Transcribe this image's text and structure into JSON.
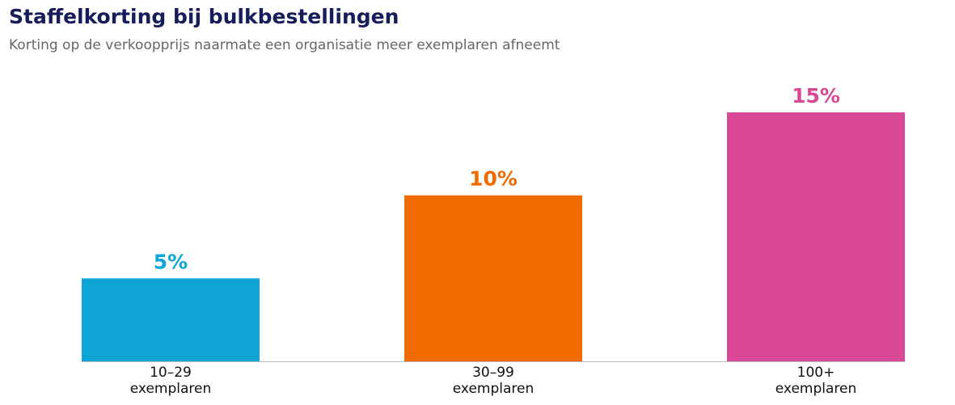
{
  "chart_data": {
    "type": "bar",
    "title": "Staffelkorting bij bulkbestellingen",
    "subtitle": "Korting op de verkoopprijs naarmate een organisatie meer exemplaren afneemt",
    "categories": [
      "10–29 exemplaren",
      "30–99 exemplaren",
      "100+ exemplaren"
    ],
    "values": [
      5,
      10,
      15
    ],
    "value_labels": [
      "5%",
      "10%",
      "15%"
    ],
    "colors": [
      "#0ea5d6",
      "#f06a00",
      "#d94896"
    ],
    "ylim": [
      0,
      15
    ]
  }
}
